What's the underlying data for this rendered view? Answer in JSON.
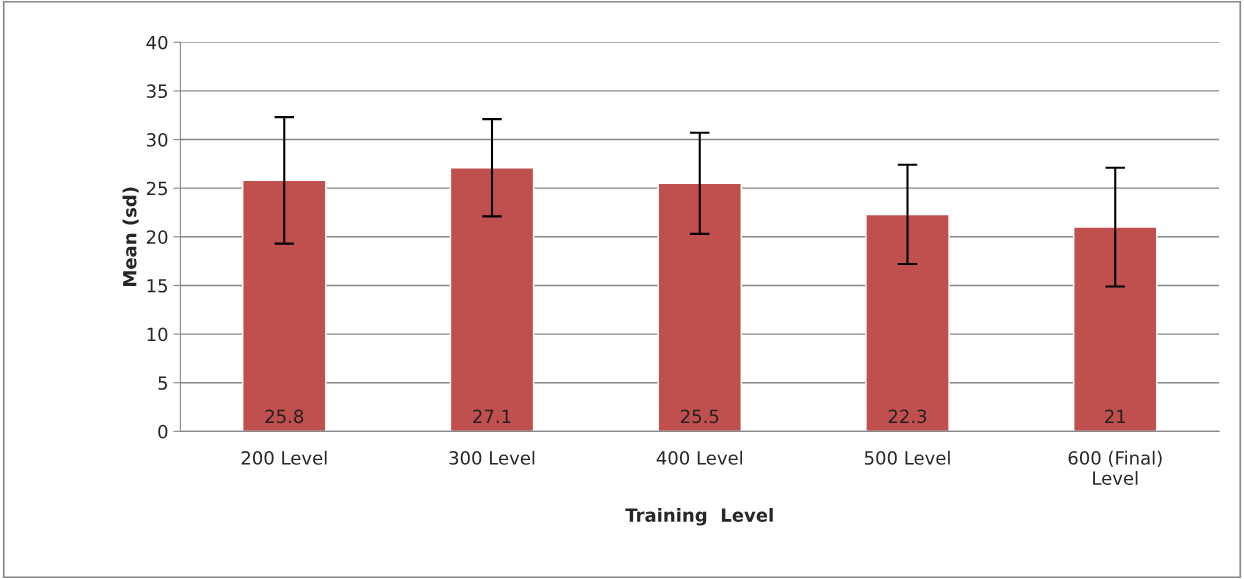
{
  "chart_data": {
    "type": "bar",
    "xlabel": "Training  Level",
    "ylabel": "Mean (sd)",
    "categories": [
      "200 Level",
      "300 Level",
      "400 Level",
      "500 Level",
      "600 (Final)\nLevel"
    ],
    "values": [
      25.8,
      27.1,
      25.5,
      22.3,
      21
    ],
    "errors": [
      6.5,
      5,
      5.2,
      5.1,
      6.1
    ],
    "color": "#c0504d",
    "data_labels": true,
    "ylim": [
      0,
      40
    ],
    "yticks": [
      0,
      5,
      10,
      15,
      20,
      25,
      30,
      35,
      40
    ],
    "grid": "y",
    "legend": false
  }
}
